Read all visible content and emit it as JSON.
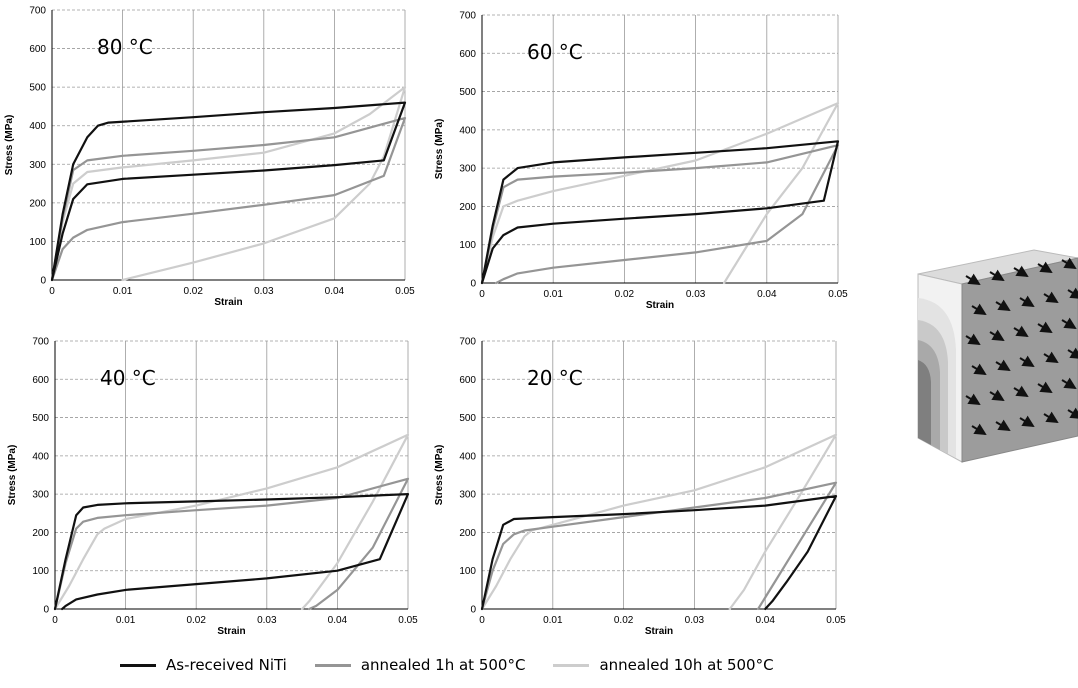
{
  "legend": [
    {
      "label": "As-received NiTi",
      "color": "#111111"
    },
    {
      "label": "annealed 1h at 500°C",
      "color": "#959595"
    },
    {
      "label": "annealed 10h at 500°C",
      "color": "#cdcdcd"
    }
  ],
  "chart_data": [
    {
      "type": "line",
      "title": "80 °C",
      "xlabel": "Strain",
      "ylabel": "Stress (MPa)",
      "xlim": [
        0,
        0.05
      ],
      "ylim": [
        0,
        700
      ],
      "xticks": [
        0,
        0.01,
        0.02,
        0.03,
        0.04,
        0.05
      ],
      "xtick_labels": [
        "0",
        "0.01",
        "0.02",
        "0.03",
        "0.04",
        "0.05"
      ],
      "yticks": [
        0,
        100,
        200,
        300,
        400,
        500,
        600,
        700
      ],
      "grid": true,
      "series": [
        {
          "name": "As-received NiTi",
          "x": [
            0,
            0.0015,
            0.003,
            0.005,
            0.0065,
            0.008,
            0.02,
            0.03,
            0.04,
            0.05,
            0.047,
            0.04,
            0.03,
            0.02,
            0.01,
            0.005,
            0.003,
            0.0015,
            0
          ],
          "y": [
            0,
            170,
            300,
            370,
            400,
            408,
            422,
            435,
            446,
            460,
            310,
            298,
            284,
            273,
            262,
            248,
            210,
            120,
            0
          ]
        },
        {
          "name": "annealed 1h at 500°C",
          "x": [
            0,
            0.0015,
            0.003,
            0.005,
            0.01,
            0.02,
            0.03,
            0.04,
            0.05,
            0.047,
            0.04,
            0.03,
            0.02,
            0.01,
            0.005,
            0.003,
            0.0015,
            0
          ],
          "y": [
            0,
            160,
            285,
            310,
            322,
            335,
            350,
            370,
            420,
            270,
            220,
            195,
            172,
            150,
            130,
            110,
            80,
            0
          ]
        },
        {
          "name": "annealed 10h at 500°C",
          "x": [
            0,
            0.0015,
            0.003,
            0.005,
            0.01,
            0.02,
            0.03,
            0.04,
            0.045,
            0.05,
            0.047,
            0.045,
            0.04,
            0.03,
            0.02,
            0.01
          ],
          "y": [
            0,
            150,
            250,
            280,
            292,
            310,
            330,
            380,
            430,
            500,
            320,
            250,
            160,
            95,
            45,
            0
          ]
        }
      ]
    },
    {
      "type": "line",
      "title": "60 °C",
      "xlabel": "Strain",
      "ylabel": "Stress (MPa)",
      "xlim": [
        0,
        0.05
      ],
      "ylim": [
        0,
        700
      ],
      "xticks": [
        0,
        0.01,
        0.02,
        0.03,
        0.04,
        0.05
      ],
      "xtick_labels": [
        "0",
        "0.01",
        "0.02",
        "0.03",
        "0.04",
        "0.05"
      ],
      "yticks": [
        0,
        100,
        200,
        300,
        400,
        500,
        600,
        700
      ],
      "grid": true,
      "series": [
        {
          "name": "As-received NiTi",
          "x": [
            0,
            0.0015,
            0.003,
            0.005,
            0.01,
            0.02,
            0.03,
            0.04,
            0.05,
            0.048,
            0.04,
            0.03,
            0.02,
            0.01,
            0.005,
            0.003,
            0.0015,
            0
          ],
          "y": [
            0,
            150,
            270,
            300,
            315,
            328,
            340,
            352,
            370,
            215,
            195,
            180,
            168,
            155,
            145,
            125,
            90,
            0
          ]
        },
        {
          "name": "annealed 1h at 500°C",
          "x": [
            0,
            0.0015,
            0.003,
            0.005,
            0.01,
            0.02,
            0.03,
            0.04,
            0.05,
            0.045,
            0.04,
            0.03,
            0.02,
            0.01,
            0.005,
            0.003,
            0.002
          ],
          "y": [
            0,
            140,
            250,
            270,
            278,
            288,
            300,
            315,
            360,
            180,
            110,
            80,
            60,
            40,
            25,
            10,
            0
          ]
        },
        {
          "name": "annealed 10h at 500°C",
          "x": [
            0,
            0.0015,
            0.003,
            0.005,
            0.01,
            0.02,
            0.03,
            0.04,
            0.05,
            0.045,
            0.04,
            0.037,
            0.034
          ],
          "y": [
            0,
            120,
            200,
            215,
            240,
            280,
            320,
            390,
            470,
            300,
            180,
            90,
            0
          ]
        }
      ]
    },
    {
      "type": "line",
      "title": "40 °C",
      "xlabel": "Strain",
      "ylabel": "Stress (MPa)",
      "xlim": [
        0,
        0.05
      ],
      "ylim": [
        0,
        700
      ],
      "xticks": [
        0,
        0.01,
        0.02,
        0.03,
        0.04,
        0.05
      ],
      "xtick_labels": [
        "0",
        "0.01",
        "0.02",
        "0.03",
        "0.04",
        "0.05"
      ],
      "yticks": [
        0,
        100,
        200,
        300,
        400,
        500,
        600,
        700
      ],
      "grid": true,
      "series": [
        {
          "name": "As-received NiTi",
          "x": [
            0,
            0.0015,
            0.003,
            0.004,
            0.006,
            0.01,
            0.02,
            0.03,
            0.04,
            0.05,
            0.046,
            0.04,
            0.03,
            0.02,
            0.01,
            0.006,
            0.003,
            0.0015,
            0.001
          ],
          "y": [
            0,
            130,
            245,
            265,
            272,
            276,
            281,
            286,
            292,
            300,
            130,
            100,
            80,
            65,
            50,
            38,
            25,
            8,
            0
          ]
        },
        {
          "name": "annealed 1h at 500°C",
          "x": [
            0,
            0.0015,
            0.003,
            0.004,
            0.006,
            0.01,
            0.02,
            0.03,
            0.04,
            0.05,
            0.045,
            0.04,
            0.037,
            0.036
          ],
          "y": [
            0,
            120,
            210,
            228,
            238,
            245,
            258,
            270,
            290,
            340,
            160,
            50,
            8,
            0
          ]
        },
        {
          "name": "annealed 10h at 500°C",
          "x": [
            0,
            0.002,
            0.004,
            0.006,
            0.007,
            0.01,
            0.02,
            0.03,
            0.04,
            0.05,
            0.045,
            0.04,
            0.036,
            0.035
          ],
          "y": [
            0,
            60,
            130,
            195,
            210,
            235,
            270,
            315,
            370,
            455,
            280,
            120,
            20,
            0
          ]
        }
      ]
    },
    {
      "type": "line",
      "title": "20 °C",
      "xlabel": "Strain",
      "ylabel": "Stress (MPa)",
      "xlim": [
        0,
        0.05
      ],
      "ylim": [
        0,
        700
      ],
      "xticks": [
        0,
        0.01,
        0.02,
        0.03,
        0.04,
        0.05
      ],
      "xtick_labels": [
        "0",
        "0.01",
        "0.02",
        "0.03",
        "0.04",
        "0.05"
      ],
      "yticks": [
        0,
        100,
        200,
        300,
        400,
        500,
        600,
        700
      ],
      "grid": true,
      "series": [
        {
          "name": "As-received NiTi",
          "x": [
            0,
            0.0015,
            0.003,
            0.0045,
            0.01,
            0.02,
            0.03,
            0.04,
            0.05,
            0.046,
            0.043,
            0.041,
            0.04
          ],
          "y": [
            0,
            130,
            220,
            235,
            240,
            248,
            258,
            270,
            295,
            150,
            70,
            20,
            0
          ]
        },
        {
          "name": "annealed 1h at 500°C",
          "x": [
            0,
            0.0015,
            0.003,
            0.0045,
            0.006,
            0.01,
            0.02,
            0.03,
            0.04,
            0.05,
            0.045,
            0.042,
            0.04,
            0.039
          ],
          "y": [
            0,
            100,
            170,
            195,
            205,
            215,
            240,
            265,
            290,
            330,
            180,
            90,
            30,
            0
          ]
        },
        {
          "name": "annealed 10h at 500°C",
          "x": [
            0,
            0.002,
            0.004,
            0.006,
            0.007,
            0.01,
            0.02,
            0.03,
            0.04,
            0.05,
            0.045,
            0.04,
            0.037,
            0.035
          ],
          "y": [
            0,
            60,
            130,
            190,
            205,
            220,
            270,
            310,
            370,
            455,
            300,
            150,
            50,
            0
          ]
        }
      ]
    }
  ]
}
